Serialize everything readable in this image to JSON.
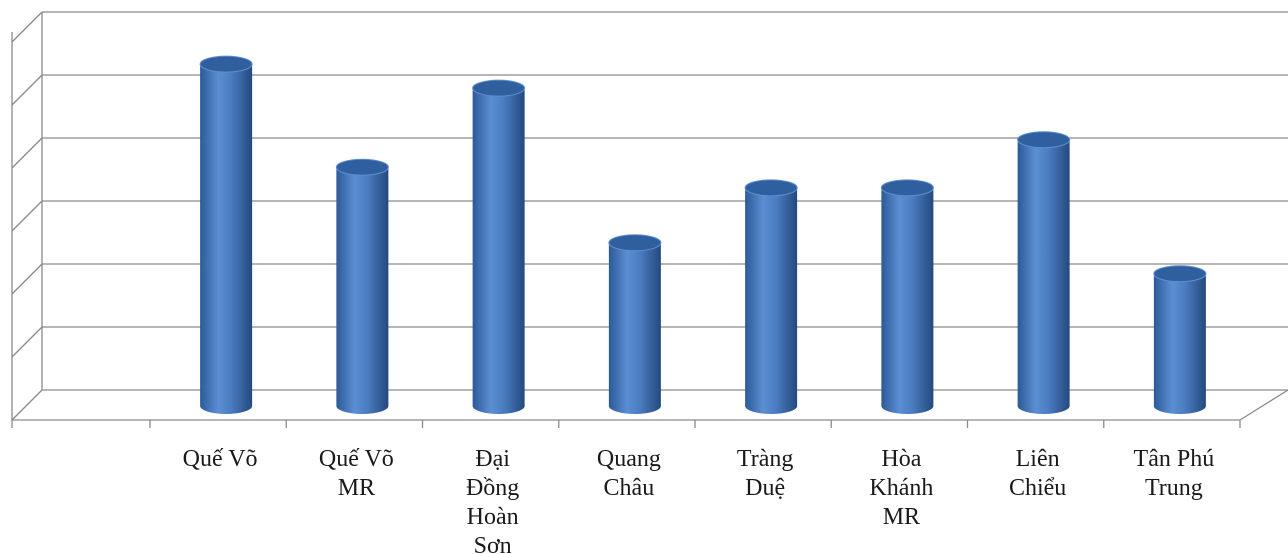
{
  "chart_data": {
    "type": "bar",
    "categories": [
      [
        "Quế Võ"
      ],
      [
        "Quế Võ",
        "MR"
      ],
      [
        "Đại",
        "Đồng",
        "Hoàn",
        "Sơn"
      ],
      [
        "Quang",
        "Châu"
      ],
      [
        "Tràng",
        "Duệ"
      ],
      [
        "Hòa",
        "Khánh",
        "MR"
      ],
      [
        "Liên",
        "Chiểu"
      ],
      [
        "Tân Phú",
        "Trung"
      ]
    ],
    "values": [
      4.8,
      3.3,
      4.45,
      2.2,
      3.0,
      3.0,
      3.7,
      1.75
    ],
    "ylim": [
      0,
      5.5
    ],
    "grid": true,
    "bar_color": "#4a7cc0",
    "bar_top_color": "#2f5f9f",
    "grid_color": "#8a8a8a"
  }
}
